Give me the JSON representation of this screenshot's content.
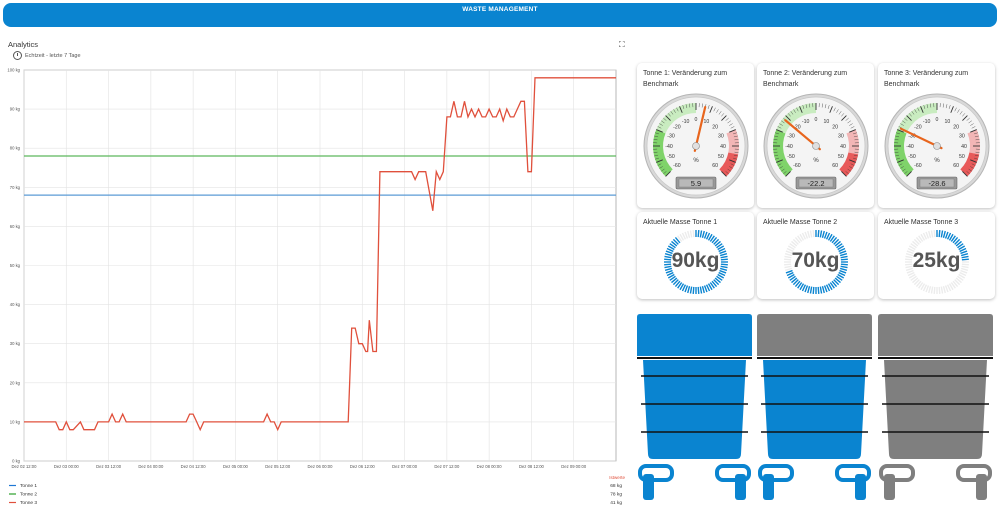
{
  "header": {
    "title": "WASTE MANAGEMENT"
  },
  "analytics": {
    "title": "Analytics",
    "time_range": "Echtzeit - letzte 7 Tage",
    "legend_header": "Istwerte",
    "legend": [
      {
        "name": "Tonne 1",
        "value": "68 kg",
        "color": "#1f77d4"
      },
      {
        "name": "Tonne 2",
        "value": "78 kg",
        "color": "#2ca02c"
      },
      {
        "name": "Tonne 3",
        "value": "41 kg",
        "color": "#e0503c"
      }
    ]
  },
  "chart_data": {
    "type": "line",
    "ylim": [
      0,
      100
    ],
    "yticks": [
      0,
      10,
      20,
      30,
      40,
      50,
      60,
      70,
      80,
      90,
      100
    ],
    "ytick_labels": [
      "0 kg",
      "10 kg",
      "20 kg",
      "30 kg",
      "40 kg",
      "50 kg",
      "60 kg",
      "70 kg",
      "80 kg",
      "90 kg",
      "100 kg"
    ],
    "xlim": [
      0,
      168
    ],
    "xticks": [
      0,
      12,
      24,
      36,
      48,
      60,
      72,
      84,
      96,
      108,
      120,
      132,
      144,
      156
    ],
    "xtick_labels": [
      "Dez 02 12:00",
      "Dez 03 00:00",
      "Dez 03 12:00",
      "Dez 04 00:00",
      "Dez 04 12:00",
      "Dez 05 00:00",
      "Dez 05 12:00",
      "Dez 06 00:00",
      "Dez 06 12:00",
      "Dez 07 00:00",
      "Dez 07 12:00",
      "Dez 08 00:00",
      "Dez 08 12:00",
      "Dez 09 00:00"
    ],
    "grid": true,
    "series": [
      {
        "name": "Tonne 1",
        "color": "#5b9bd5",
        "x": [
          0,
          168
        ],
        "y": [
          68,
          68
        ]
      },
      {
        "name": "Tonne 2",
        "color": "#5cb85c",
        "x": [
          0,
          168
        ],
        "y": [
          78,
          78
        ]
      },
      {
        "name": "Tonne 3",
        "color": "#e0503c",
        "x": [
          0,
          9,
          10,
          11,
          12,
          13,
          14,
          16,
          17,
          18,
          19,
          20,
          21,
          23,
          24,
          25,
          26,
          27,
          28,
          29,
          30,
          31,
          33,
          35,
          40,
          44,
          46,
          47,
          48,
          49,
          50,
          51,
          52,
          53,
          56,
          60,
          64,
          68,
          69,
          70,
          71,
          72,
          73,
          75,
          78,
          80,
          82,
          84,
          92,
          93,
          93.5,
          94,
          95,
          96,
          97,
          97.5,
          98,
          99,
          100,
          101,
          102,
          104,
          106,
          108,
          110,
          111,
          112,
          113,
          114,
          116,
          117,
          118,
          119,
          120,
          121,
          122,
          123,
          124,
          125,
          126,
          127,
          128,
          129,
          130,
          131,
          132,
          133,
          134,
          135,
          136,
          137,
          138,
          139,
          140,
          141,
          142,
          143,
          144,
          145,
          146,
          147,
          148,
          149,
          168
        ],
        "y": [
          10,
          10,
          8,
          8,
          10,
          8,
          8,
          10,
          8,
          8,
          8,
          8,
          10,
          10,
          10,
          12,
          10,
          10,
          12,
          10,
          10,
          10,
          10,
          10,
          10,
          10,
          10,
          12,
          12,
          10,
          8,
          10,
          10,
          10,
          10,
          10,
          10,
          10,
          12,
          10,
          10,
          8,
          10,
          10,
          10,
          10,
          10,
          10,
          10,
          34,
          34,
          34,
          30,
          30,
          28,
          28,
          36,
          28,
          28,
          74,
          74,
          74,
          74,
          74,
          74,
          72,
          74,
          74,
          74,
          64,
          74,
          72,
          74,
          88,
          88,
          92,
          88,
          88,
          92,
          88,
          90,
          88,
          90,
          88,
          88,
          90,
          88,
          88,
          90,
          87,
          90,
          88,
          88,
          90,
          92,
          92,
          74,
          74,
          98,
          98,
          98,
          98,
          98,
          98
        ]
      }
    ]
  },
  "gauges": [
    {
      "title": "Tonne 1: Veränderung zum Benchmark",
      "value": 5.9,
      "display": "5.9"
    },
    {
      "title": "Tonne 2: Veränderung zum Benchmark",
      "value": -22.2,
      "display": "-22.2"
    },
    {
      "title": "Tonne 3: Veränderung zum Benchmark",
      "value": -28.6,
      "display": "-28.6"
    }
  ],
  "gauge_scale": {
    "min": -60,
    "max": 60,
    "labels": [
      "-60",
      "-50",
      "-40",
      "-30",
      "-20",
      "-10",
      "0",
      "10",
      "20",
      "30",
      "40",
      "50",
      "60"
    ],
    "unit": "%"
  },
  "masses": [
    {
      "title": "Aktuelle Masse Tonne 1",
      "label": "90kg",
      "value": 90
    },
    {
      "title": "Aktuelle Masse Tonne 2",
      "label": "70kg",
      "value": 70
    },
    {
      "title": "Aktuelle Masse Tonne 3",
      "label": "25kg",
      "value": 25
    }
  ],
  "bins": [
    {
      "body_color": "#0a84d0",
      "lid_color": "#0a84d0"
    },
    {
      "body_color": "#0a84d0",
      "lid_color": "#7f7f7f"
    },
    {
      "body_color": "#7f7f7f",
      "lid_color": "#7f7f7f"
    }
  ]
}
